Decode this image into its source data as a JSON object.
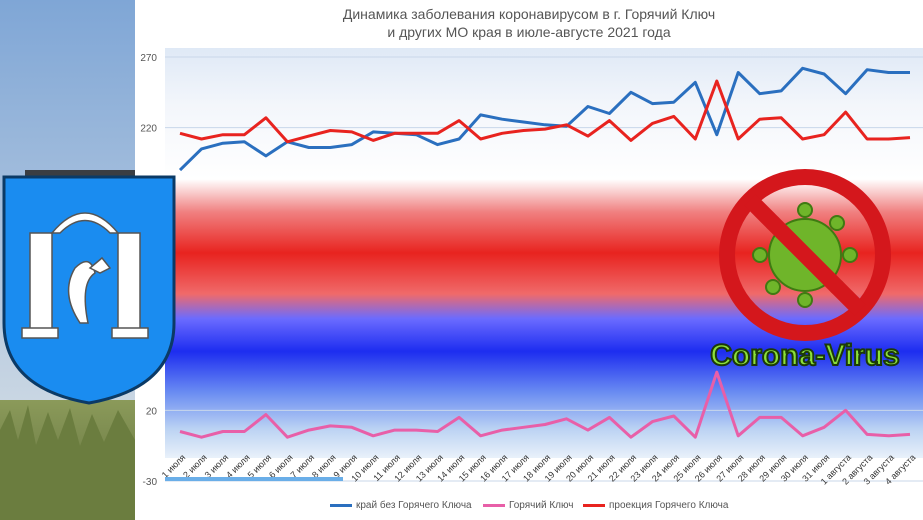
{
  "chart_data": {
    "type": "line",
    "title": "Динамика заболевания коронавирусом в г. Горячий Ключ",
    "subtitle": "и других МО края в июле-августе 2021 года",
    "y_ticks": [
      270,
      220,
      20,
      -30
    ],
    "categories": [
      "1 июля",
      "2 июля",
      "3 июля",
      "4 июля",
      "5 июля",
      "6 июля",
      "7 июля",
      "8 июля",
      "9 июля",
      "10 июля",
      "11 июля",
      "12 июля",
      "13 июля",
      "14 июля",
      "15 июля",
      "16 июля",
      "17 июля",
      "18 июля",
      "19 июля",
      "20 июля",
      "21 июля",
      "22 июля",
      "23 июля",
      "24 июля",
      "25 июля",
      "26 июля",
      "27 июля",
      "28 июля",
      "29 июля",
      "30 июля",
      "31 июля",
      "1 августа",
      "2 августа",
      "3 августа",
      "4 августа"
    ],
    "series": [
      {
        "name": "край без Горячего Ключа",
        "color": "#2a6fbf",
        "values": [
          190,
          205,
          209,
          210,
          200,
          210,
          206,
          206,
          208,
          217,
          216,
          215,
          208,
          212,
          229,
          226,
          224,
          222,
          221,
          235,
          230,
          245,
          237,
          238,
          252,
          215,
          259,
          244,
          246,
          262,
          258,
          244,
          261,
          259,
          259
        ]
      },
      {
        "name": "Горячий Ключ",
        "color": "#e85fa8",
        "values": [
          5,
          1,
          5,
          5,
          17,
          1,
          6,
          9,
          8,
          2,
          6,
          6,
          5,
          15,
          2,
          6,
          8,
          10,
          14,
          6,
          15,
          1,
          12,
          16,
          1,
          47,
          2,
          15,
          15,
          2,
          8,
          20,
          3,
          2,
          3
        ]
      },
      {
        "name": "проекция Горячего Ключа",
        "color": "#e8231f",
        "values": [
          216,
          212,
          215,
          215,
          227,
          210,
          214,
          218,
          217,
          211,
          216,
          216,
          216,
          225,
          212,
          216,
          218,
          219,
          222,
          214,
          225,
          211,
          223,
          228,
          212,
          253,
          212,
          226,
          227,
          212,
          215,
          231,
          212,
          212,
          213
        ]
      }
    ]
  },
  "legend": {
    "item1": "край без Горячего Ключа",
    "item2": "Горячий Ключ",
    "item3": "проекция Горячего Ключа"
  },
  "badge": {
    "text": "Corona-Virus"
  },
  "colors": {
    "blue": "#2a6fbf",
    "pink": "#e85fa8",
    "red": "#e8231f",
    "crest": "#1a8cf0"
  }
}
